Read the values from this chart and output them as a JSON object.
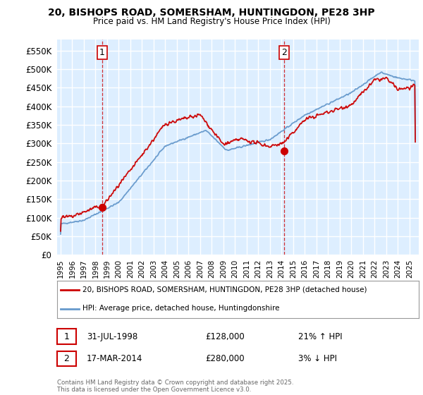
{
  "title": "20, BISHOPS ROAD, SOMERSHAM, HUNTINGDON, PE28 3HP",
  "subtitle": "Price paid vs. HM Land Registry's House Price Index (HPI)",
  "hpi_label": "HPI: Average price, detached house, Huntingdonshire",
  "property_label": "20, BISHOPS ROAD, SOMERSHAM, HUNTINGDON, PE28 3HP (detached house)",
  "footer": "Contains HM Land Registry data © Crown copyright and database right 2025.\nThis data is licensed under the Open Government Licence v3.0.",
  "sale1_label": "1",
  "sale1_date": "31-JUL-1998",
  "sale1_price": "£128,000",
  "sale1_hpi": "21% ↑ HPI",
  "sale2_label": "2",
  "sale2_date": "17-MAR-2014",
  "sale2_price": "£280,000",
  "sale2_hpi": "3% ↓ HPI",
  "sale1_year": 1998.58,
  "sale1_value": 128000,
  "sale2_year": 2014.21,
  "sale2_value": 280000,
  "property_color": "#cc0000",
  "hpi_color": "#6699cc",
  "vline_color": "#cc0000",
  "ylim_max": 580000,
  "yticks": [
    0,
    50000,
    100000,
    150000,
    200000,
    250000,
    300000,
    350000,
    400000,
    450000,
    500000,
    550000
  ],
  "background_color": "#ffffff",
  "grid_color": "#e0e0e0",
  "chart_bg": "#ddeeff"
}
